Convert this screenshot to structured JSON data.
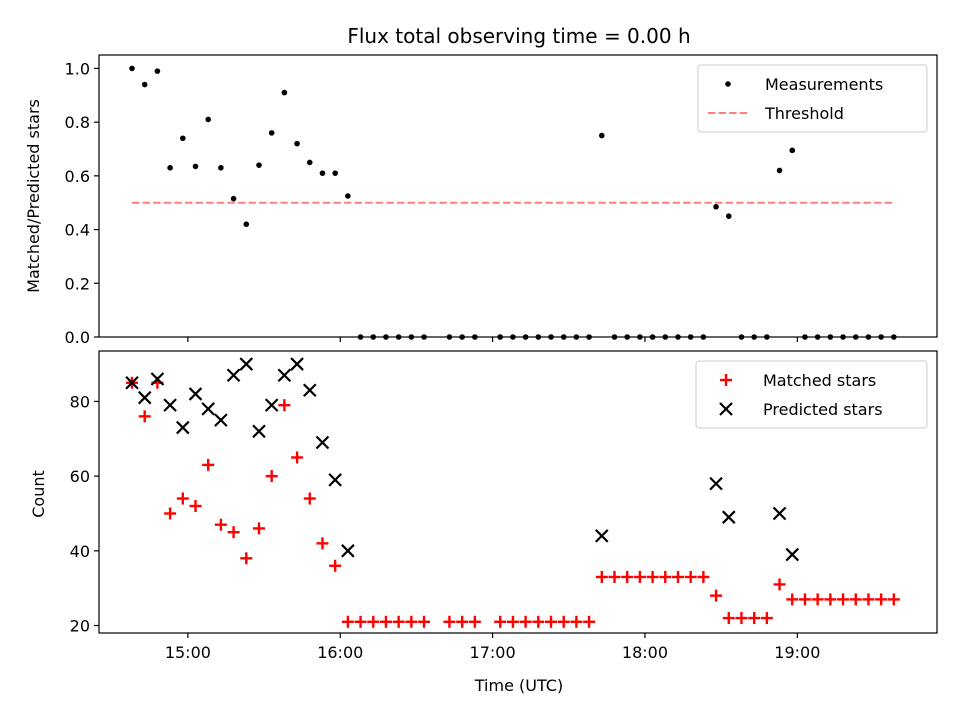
{
  "chart_data": [
    {
      "type": "scatter",
      "title": "Flux total observing time = 0.00 h",
      "xlabel": "",
      "ylabel": "Matched/Predicted stars",
      "ylim": [
        0,
        1.05
      ],
      "xlim": [
        "14:25",
        "19:55"
      ],
      "yticks": [
        0.0,
        0.2,
        0.4,
        0.6,
        0.8,
        1.0
      ],
      "ytick_labels": [
        "0.0",
        "0.2",
        "0.4",
        "0.6",
        "0.8",
        "1.0"
      ],
      "legend": {
        "placement": "top-right",
        "entries": [
          "Measurements",
          "Threshold"
        ]
      },
      "series": [
        {
          "name": "Measurements",
          "x": [
            "14:38",
            "14:43",
            "14:48",
            "14:53",
            "14:58",
            "15:03",
            "15:08",
            "15:13",
            "15:18",
            "15:23",
            "15:28",
            "15:33",
            "15:38",
            "15:43",
            "15:48",
            "15:53",
            "15:58",
            "16:03",
            "16:08",
            "16:13",
            "16:18",
            "16:23",
            "16:28",
            "16:33",
            "16:43",
            "16:48",
            "16:53",
            "17:03",
            "17:08",
            "17:13",
            "17:18",
            "17:23",
            "17:28",
            "17:33",
            "17:38",
            "17:43",
            "17:48",
            "17:53",
            "17:58",
            "18:03",
            "18:08",
            "18:13",
            "18:18",
            "18:23",
            "18:28",
            "18:33",
            "18:38",
            "18:43",
            "18:48",
            "18:53",
            "18:58",
            "19:03",
            "19:08",
            "19:13",
            "19:18",
            "19:23",
            "19:28",
            "19:33",
            "19:38"
          ],
          "y": [
            1.0,
            0.94,
            0.99,
            0.63,
            0.74,
            0.635,
            0.81,
            0.63,
            0.515,
            0.42,
            0.64,
            0.76,
            0.91,
            0.72,
            0.65,
            0.61,
            0.61,
            0.525,
            0,
            0,
            0,
            0,
            0,
            0,
            0,
            0,
            0,
            0,
            0,
            0,
            0,
            0,
            0,
            0,
            0,
            0.75,
            0,
            0,
            0,
            0,
            0,
            0,
            0,
            0,
            0.485,
            0.45,
            0,
            0,
            0,
            0.62,
            0.695,
            0,
            0,
            0,
            0,
            0,
            0,
            0,
            0
          ],
          "color": "#000000"
        },
        {
          "name": "Threshold",
          "x": [
            "14:38",
            "19:38"
          ],
          "y": [
            0.5,
            0.5
          ],
          "style": "dashed",
          "color": "#ff7f7f"
        }
      ]
    },
    {
      "type": "scatter",
      "title": "",
      "xlabel": "Time (UTC)",
      "ylabel": "Count",
      "ylim": [
        18,
        93.5
      ],
      "xlim": [
        "14:25",
        "19:55"
      ],
      "yticks": [
        20,
        40,
        60,
        80
      ],
      "ytick_labels": [
        "20",
        "40",
        "60",
        "80"
      ],
      "xticks": [
        "15:00",
        "16:00",
        "17:00",
        "18:00",
        "19:00"
      ],
      "xtick_labels": [
        "15:00",
        "16:00",
        "17:00",
        "18:00",
        "19:00"
      ],
      "legend": {
        "placement": "top-right",
        "entries": [
          "Matched stars",
          "Predicted stars"
        ]
      },
      "series": [
        {
          "name": "Matched stars",
          "marker": "plus",
          "color": "#ff0000",
          "x": [
            "14:38",
            "14:43",
            "14:48",
            "14:53",
            "14:58",
            "15:03",
            "15:08",
            "15:13",
            "15:18",
            "15:23",
            "15:28",
            "15:33",
            "15:38",
            "15:43",
            "15:48",
            "15:53",
            "15:58",
            "16:03",
            "16:08",
            "16:13",
            "16:18",
            "16:23",
            "16:28",
            "16:33",
            "16:43",
            "16:48",
            "16:53",
            "17:03",
            "17:08",
            "17:13",
            "17:18",
            "17:23",
            "17:28",
            "17:33",
            "17:38",
            "17:43",
            "17:48",
            "17:53",
            "17:58",
            "18:03",
            "18:08",
            "18:13",
            "18:18",
            "18:23",
            "18:28",
            "18:33",
            "18:38",
            "18:43",
            "18:48",
            "18:53",
            "18:58",
            "19:03",
            "19:08",
            "19:13",
            "19:18",
            "19:23",
            "19:28",
            "19:33",
            "19:38"
          ],
          "y": [
            85,
            76,
            85,
            50,
            54,
            52,
            63,
            47,
            45,
            38,
            46,
            60,
            79,
            65,
            54,
            42,
            36,
            21,
            21,
            21,
            21,
            21,
            21,
            21,
            21,
            21,
            21,
            21,
            21,
            21,
            21,
            21,
            21,
            21,
            21,
            33,
            33,
            33,
            33,
            33,
            33,
            33,
            33,
            33,
            28,
            22,
            22,
            22,
            22,
            31,
            27,
            27,
            27,
            27,
            27,
            27,
            27,
            27,
            27
          ]
        },
        {
          "name": "Predicted stars",
          "marker": "x",
          "color": "#000000",
          "x": [
            "14:38",
            "14:43",
            "14:48",
            "14:53",
            "14:58",
            "15:03",
            "15:08",
            "15:13",
            "15:18",
            "15:23",
            "15:28",
            "15:33",
            "15:38",
            "15:43",
            "15:48",
            "15:53",
            "15:58",
            "16:03",
            "17:43",
            "18:28",
            "18:33",
            "18:53",
            "18:58"
          ],
          "y": [
            85,
            81,
            86,
            79,
            73,
            82,
            78,
            75,
            87,
            90,
            72,
            79,
            87,
            90,
            83,
            69,
            59,
            40,
            44,
            58,
            49,
            50,
            39
          ]
        }
      ]
    }
  ]
}
